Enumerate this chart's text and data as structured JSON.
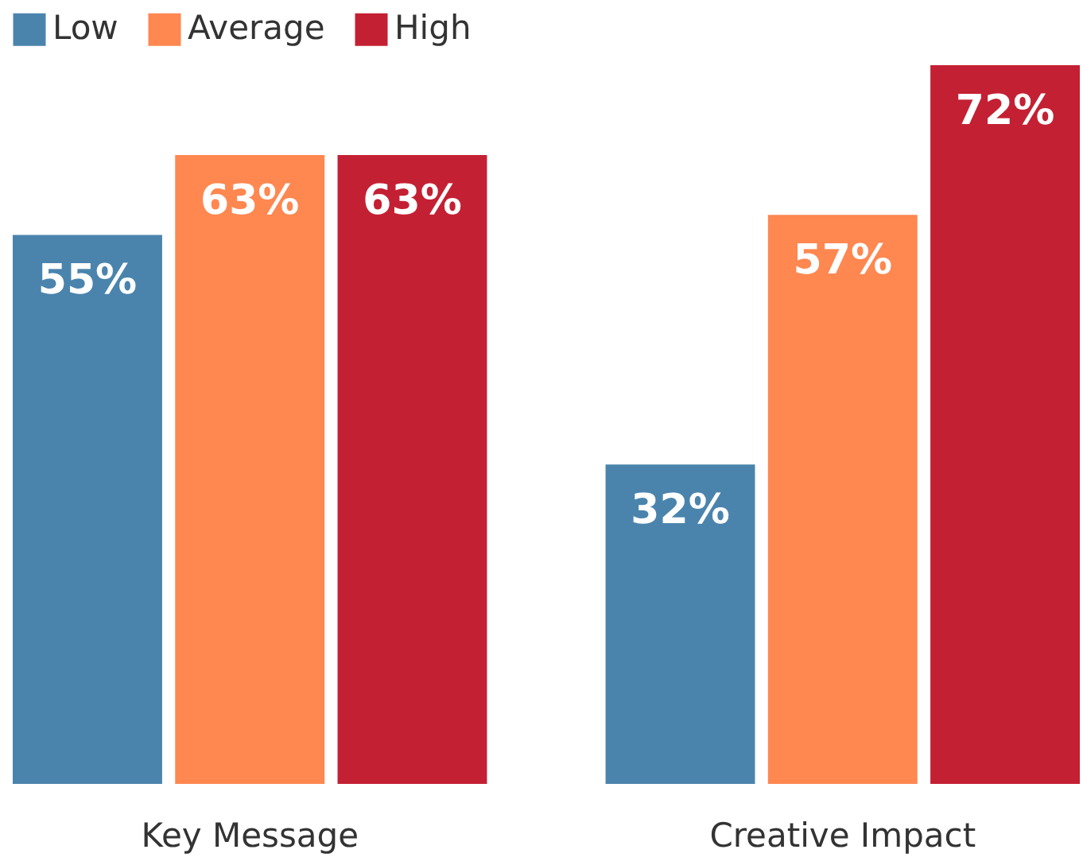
{
  "chart_data": {
    "type": "bar",
    "categories": [
      "Key Message",
      "Creative Impact"
    ],
    "series": [
      {
        "name": "Low",
        "color": "#4a84ad",
        "values": [
          55,
          32
        ],
        "value_labels": [
          "55%",
          "32%"
        ]
      },
      {
        "name": "Average",
        "color": "#ff8750",
        "values": [
          63,
          57
        ],
        "value_labels": [
          "63%",
          "57%"
        ]
      },
      {
        "name": "High",
        "color": "#c42033",
        "values": [
          63,
          72
        ],
        "value_labels": [
          "63%",
          "72%"
        ]
      }
    ],
    "ylim": [
      0,
      72
    ],
    "legend": "top left"
  }
}
